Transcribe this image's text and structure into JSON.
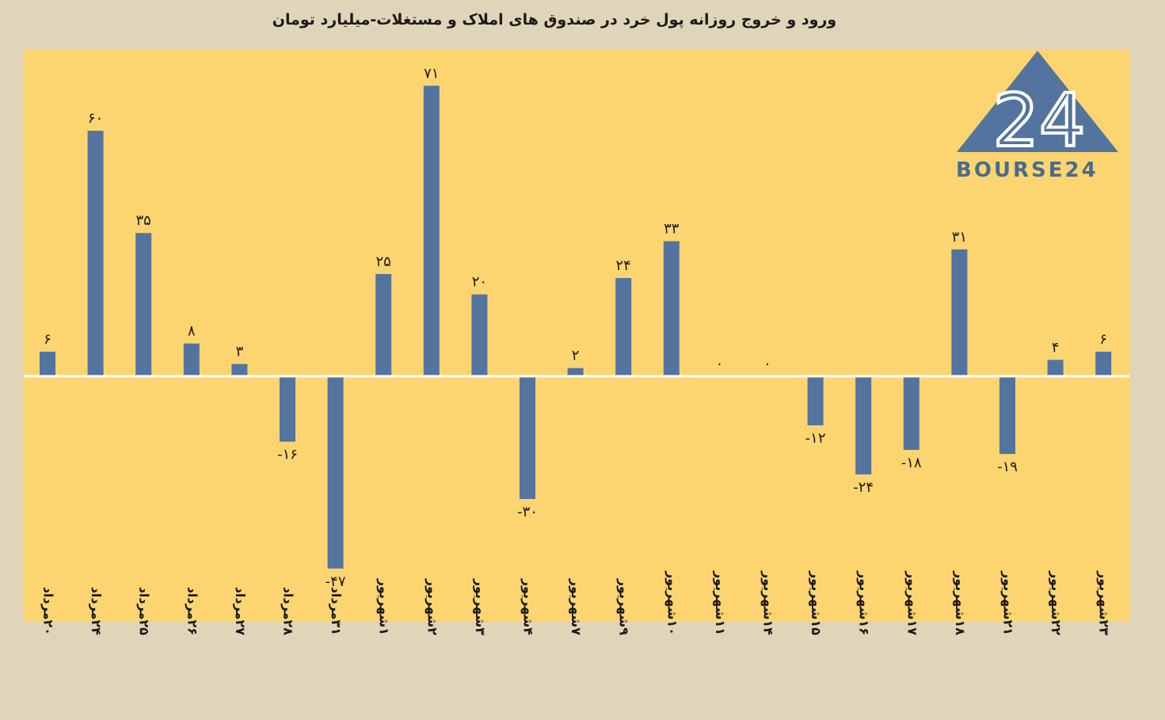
{
  "chart_data": {
    "type": "bar",
    "title": "ورود و خروج روزانه پول خرد در صندوق های املاک و مستغلات-میلیارد تومان",
    "categories": [
      "۲۰مرداد",
      "۲۴مرداد",
      "۲۵مرداد",
      "۲۶مرداد",
      "۲۷مرداد",
      "۲۸مرداد",
      "۳۱مرداد",
      "۱شهریور",
      "۲شهریور",
      "۳شهریور",
      "۴شهریور",
      "۷شهریور",
      "۹شهریور",
      "۱۰شهریور",
      "۱۱شهریور",
      "۱۴شهریور",
      "۱۵شهریور",
      "۱۶شهریور",
      "۱۷شهریور",
      "۱۸شهریور",
      "۲۱شهریور",
      "۲۲شهریور",
      "۲۳شهریور"
    ],
    "values": [
      6,
      60,
      35,
      8,
      3,
      -16,
      -47,
      25,
      71,
      20,
      -30,
      2,
      24,
      33,
      0,
      0,
      -12,
      -24,
      -18,
      31,
      -19,
      4,
      6
    ],
    "data_labels": [
      "۶",
      "۶۰",
      "۳۵",
      "۸",
      "۳",
      "-۱۶",
      "-۴۷",
      "۲۵",
      "۷۱",
      "۲۰",
      "-۳۰",
      "۲",
      "۲۴",
      "۳۳",
      "۰",
      "۰",
      "-۱۲",
      "-۲۴",
      "-۱۸",
      "۳۱",
      "-۱۹",
      "۴",
      "۶"
    ],
    "xlabel": "",
    "ylabel": "",
    "ylim": [
      -60,
      80
    ],
    "grid": false,
    "legend": "none",
    "colors": {
      "bar": "#52749e",
      "plot_bg": "#fcd571",
      "page_bg": "#e0d5b9",
      "axis": "#ffffff",
      "text": "#1a1a1a"
    }
  },
  "logo": {
    "text": "BOURSE24",
    "mark_text": "24",
    "color": "#52749e"
  }
}
